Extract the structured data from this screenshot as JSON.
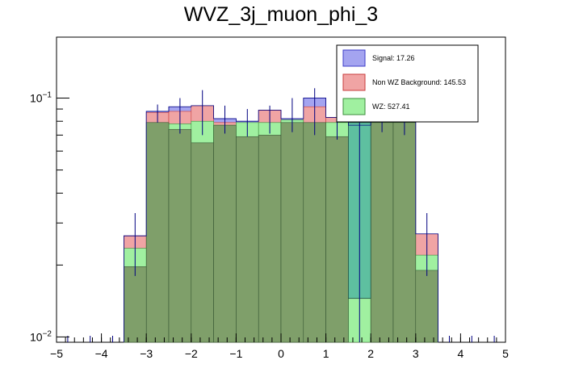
{
  "chart_data": {
    "type": "bar",
    "subtype": "stacked-histogram",
    "title": "WVZ_3j_muon_phi_3",
    "xlabel": "",
    "ylabel": "",
    "xlim": [
      -5,
      5
    ],
    "ylim": [
      0.0095,
      0.18
    ],
    "yscale": "log",
    "bin_edges": [
      -3.5,
      -3.0,
      -2.5,
      -2.0,
      -1.5,
      -1.0,
      -0.5,
      0.0,
      0.5,
      1.0,
      1.5,
      2.0,
      2.5,
      3.0,
      3.5
    ],
    "x_ticks": [
      "−5",
      "−4",
      "−3",
      "−2",
      "−1",
      "0",
      "1",
      "2",
      "3",
      "4",
      "5"
    ],
    "y_ticks": [
      {
        "value": 0.1,
        "base": "10",
        "exp": "−1"
      },
      {
        "value": 0.01,
        "base": "10",
        "exp": "−2"
      }
    ],
    "series": [
      {
        "name": "WZ",
        "label": "WZ: 527.41",
        "color": "#a0f0a0",
        "edge": "#3c8c3c",
        "values": [
          0.0235,
          0.079,
          0.078,
          0.08,
          0.077,
          0.079,
          0.079,
          0.081,
          0.078,
          0.079,
          0.0145,
          0.079,
          0.079,
          0.022
        ]
      },
      {
        "name": "Non WZ Background",
        "label": "Non WZ Background: 145.53",
        "color": "#f0a4a4",
        "edge": "#c83c3c",
        "values": [
          0.0265,
          0.087,
          0.088,
          0.093,
          0.079,
          0.078,
          0.089,
          0.08,
          0.092,
          0.083,
          0.077,
          0.084,
          0.08,
          0.027
        ]
      },
      {
        "name": "Signal",
        "label": "Signal: 17.26",
        "color": "#a4a4f0",
        "edge": "#3c3cc8",
        "values": [
          0.0265,
          0.088,
          0.092,
          0.093,
          0.082,
          0.08,
          0.089,
          0.082,
          0.1,
          0.083,
          0.077,
          0.084,
          0.081,
          0.027
        ]
      }
    ],
    "overlay": {
      "color": "#7f9f6a",
      "values": [
        0.0197,
        0.079,
        0.074,
        0.065,
        0.077,
        0.069,
        0.07,
        0.079,
        0.079,
        0.069,
        0.079,
        0.079,
        0.079,
        0.019
      ]
    },
    "highlight_bin": {
      "index": 10,
      "color": "#5ec0a0",
      "top": 0.079,
      "bottom": 0.0145
    },
    "error_bars": [
      {
        "center": 0.0265,
        "low": 0.018,
        "high": 0.033
      },
      {
        "center": 0.087,
        "low": 0.079,
        "high": 0.094
      },
      {
        "center": 0.082,
        "low": 0.071,
        "high": 0.1
      },
      {
        "center": 0.085,
        "low": 0.07,
        "high": 0.108
      },
      {
        "center": 0.08,
        "low": 0.071,
        "high": 0.093
      },
      {
        "center": 0.079,
        "low": 0.069,
        "high": 0.09
      },
      {
        "center": 0.082,
        "low": 0.071,
        "high": 0.093
      },
      {
        "center": 0.081,
        "low": 0.072,
        "high": 0.1
      },
      {
        "center": 0.09,
        "low": 0.07,
        "high": 0.11
      },
      {
        "center": 0.081,
        "low": 0.067,
        "high": 0.094
      },
      {
        "center": 0.03,
        "low": 0.0095,
        "high": 0.079
      },
      {
        "center": 0.083,
        "low": 0.072,
        "high": 0.095
      },
      {
        "center": 0.081,
        "low": 0.07,
        "high": 0.093
      },
      {
        "center": 0.0265,
        "low": 0.018,
        "high": 0.033
      }
    ],
    "legend": {
      "placement": "top-right",
      "entries": [
        {
          "label": "Signal: 17.26",
          "color": "#a4a4f0",
          "edge": "#3c3cc8"
        },
        {
          "label": "Non WZ Background: 145.53",
          "color": "#f0a4a4",
          "edge": "#c83c3c"
        },
        {
          "label": "WZ: 527.41",
          "color": "#a0f0a0",
          "edge": "#3c8c3c"
        }
      ]
    }
  }
}
